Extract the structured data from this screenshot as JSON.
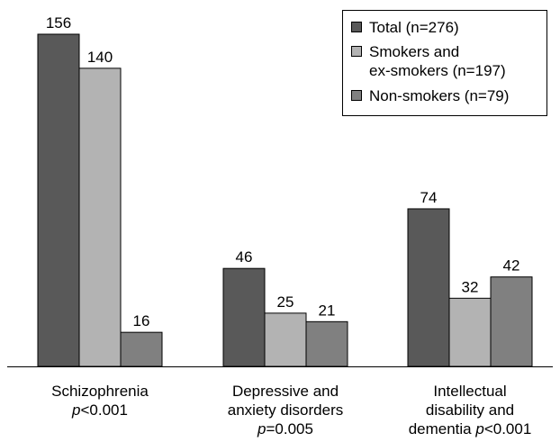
{
  "chart_data": {
    "type": "bar",
    "categories": [
      {
        "lines": [
          "Schizophrenia"
        ],
        "pvalue": {
          "p": "p",
          "rest": "<0.001"
        }
      },
      {
        "lines": [
          "Depressive and",
          "anxiety disorders"
        ],
        "pvalue": {
          "p": "p",
          "rest": "=0.005"
        }
      },
      {
        "lines": [
          "Intellectual",
          "disability and"
        ],
        "lastline": "dementia ",
        "pvalue": {
          "p": "p",
          "rest": "<0.001"
        }
      }
    ],
    "series": [
      {
        "name": "Total (n=276)",
        "name_lines": [
          "Total (n=276)"
        ],
        "color": "#595959",
        "values": [
          156,
          46,
          74
        ]
      },
      {
        "name": "Smokers and ex-smokers (n=197)",
        "name_lines": [
          "Smokers and",
          "ex-smokers (n=197)"
        ],
        "color": "#b3b3b3",
        "values": [
          140,
          25,
          32
        ]
      },
      {
        "name": "Non-smokers (n=79)",
        "name_lines": [
          "Non-smokers (n=79)"
        ],
        "color": "#808080",
        "values": [
          16,
          21,
          42
        ]
      }
    ],
    "ylim": [
      0,
      156
    ],
    "legend_position": "top-right",
    "grid": false,
    "title": "",
    "xlabel": "",
    "ylabel": ""
  }
}
